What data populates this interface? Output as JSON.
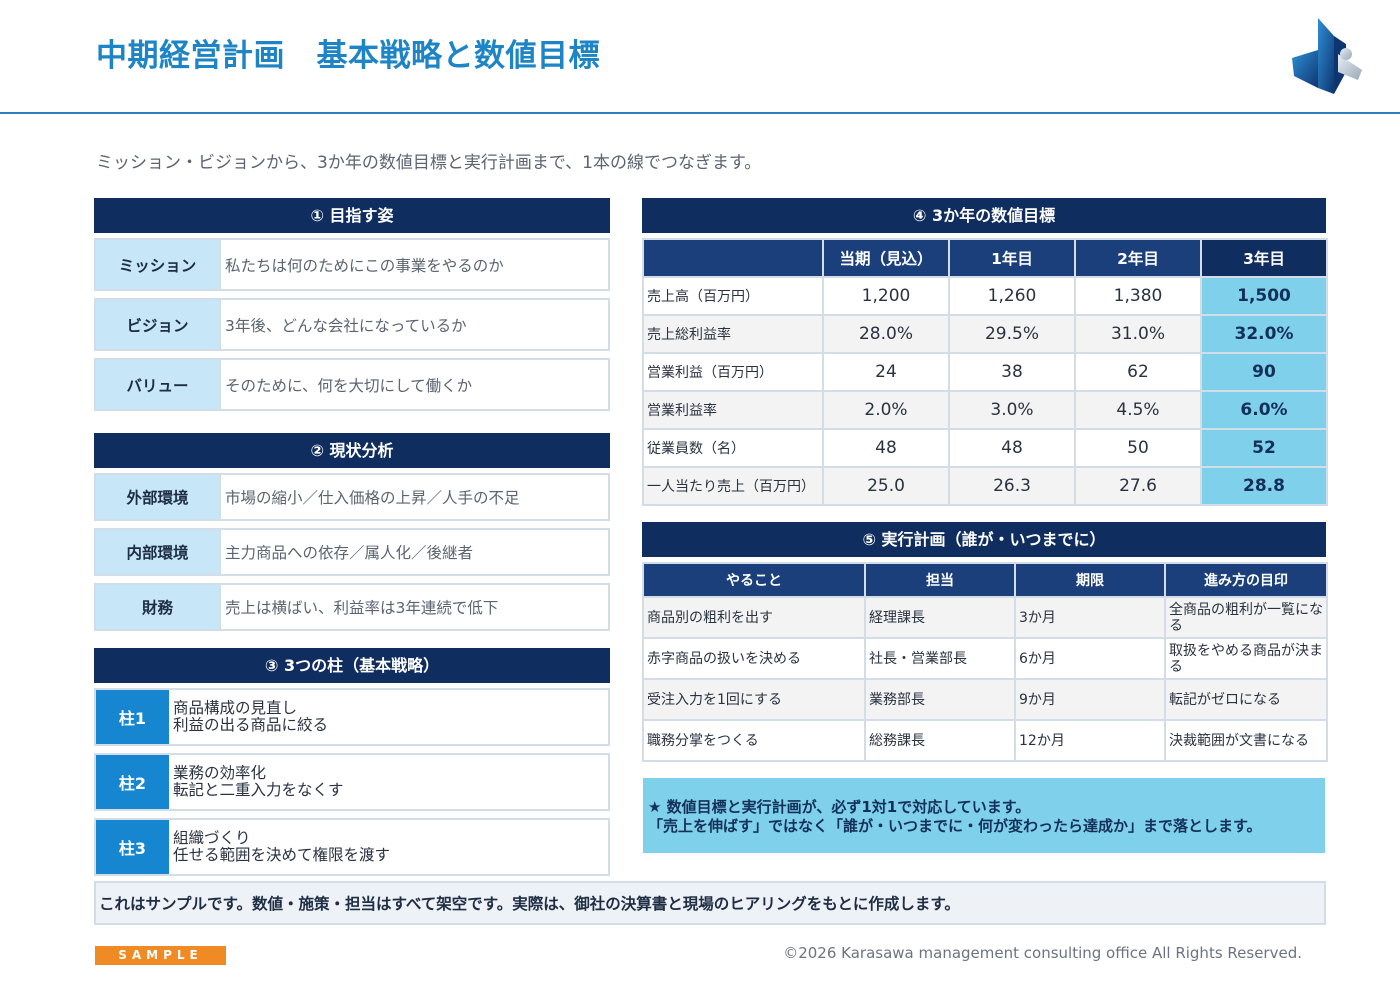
{
  "header": {
    "title": "中期経営計画　基本戦略と数値目標",
    "logo_icon": "company-logo-icon",
    "colors": {
      "title": "#1d84c6",
      "navy": "#0f2d5e",
      "accent": "#1586cf",
      "highlight": "#7fd1eb",
      "sample_badge": "#f08a24"
    }
  },
  "lead": "ミッション・ビジョンから、3か年の数値目標と実行計画まで、1本の線でつなぎます。",
  "section1": {
    "title": "① 目指す姿",
    "rows": [
      {
        "key": "ミッション",
        "value": "私たちは何のためにこの事業をやるのか"
      },
      {
        "key": "ビジョン",
        "value": "3年後、どんな会社になっているか"
      },
      {
        "key": "バリュー",
        "value": "そのために、何を大切にして働くか"
      }
    ]
  },
  "section2": {
    "title": "② 現状分析",
    "rows": [
      {
        "key": "外部環境",
        "value": "市場の縮小／仕入価格の上昇／人手の不足"
      },
      {
        "key": "内部環境",
        "value": "主力商品への依存／属人化／後継者"
      },
      {
        "key": "財務",
        "value": "売上は横ばい、利益率は3年連続で低下"
      }
    ]
  },
  "section3": {
    "title": "③ 3つの柱（基本戦略）",
    "rows": [
      {
        "key": "柱1",
        "line1": "商品構成の見直し",
        "line2": "利益の出る商品に絞る"
      },
      {
        "key": "柱2",
        "line1": "業務の効率化",
        "line2": "転記と二重入力をなくす"
      },
      {
        "key": "柱3",
        "line1": "組織づくり",
        "line2": "任せる範囲を決めて権限を渡す"
      }
    ]
  },
  "section4": {
    "title": "④ 3か年の数値目標",
    "headers": [
      "",
      "当期（見込）",
      "1年目",
      "2年目",
      "3年目"
    ],
    "rows": [
      {
        "label": "売上高（百万円）",
        "values": [
          "1,200",
          "1,260",
          "1,380",
          "1,500"
        ]
      },
      {
        "label": "売上総利益率",
        "values": [
          "28.0%",
          "29.5%",
          "31.0%",
          "32.0%"
        ]
      },
      {
        "label": "営業利益（百万円）",
        "values": [
          "24",
          "38",
          "62",
          "90"
        ]
      },
      {
        "label": "営業利益率",
        "values": [
          "2.0%",
          "3.0%",
          "4.5%",
          "6.0%"
        ]
      },
      {
        "label": "従業員数（名）",
        "values": [
          "48",
          "48",
          "50",
          "52"
        ]
      },
      {
        "label": "一人当たり売上（百万円）",
        "values": [
          "25.0",
          "26.3",
          "27.6",
          "28.8"
        ]
      }
    ]
  },
  "section5": {
    "title": "⑤ 実行計画（誰が・いつまでに）",
    "headers": [
      "やること",
      "担当",
      "期限",
      "進み方の目印"
    ],
    "rows": [
      {
        "task": "商品別の粗利を出す",
        "owner": "経理課長",
        "deadline": "3か月",
        "milestone": "全商品の粗利が一覧になる"
      },
      {
        "task": "赤字商品の扱いを決める",
        "owner": "社長・営業部長",
        "deadline": "6か月",
        "milestone": "取扱をやめる商品が決まる"
      },
      {
        "task": "受注入力を1回にする",
        "owner": "業務部長",
        "deadline": "9か月",
        "milestone": "転記がゼロになる"
      },
      {
        "task": "職務分掌をつくる",
        "owner": "総務課長",
        "deadline": "12か月",
        "milestone": "決裁範囲が文書になる"
      }
    ]
  },
  "note": {
    "line1": "★ 数値目標と実行計画が、必ず1対1で対応しています。",
    "line2": "「売上を伸ばす」ではなく「誰が・いつまでに・何が変わったら達成か」まで落とします。"
  },
  "disclaimer": "これはサンプルです。数値・施策・担当はすべて架空です。実際は、御社の決算書と現場のヒアリングをもとに作成します。",
  "footer": {
    "sample": "SAMPLE",
    "copyright": "©2026 Karasawa management consulting office All Rights Reserved."
  }
}
